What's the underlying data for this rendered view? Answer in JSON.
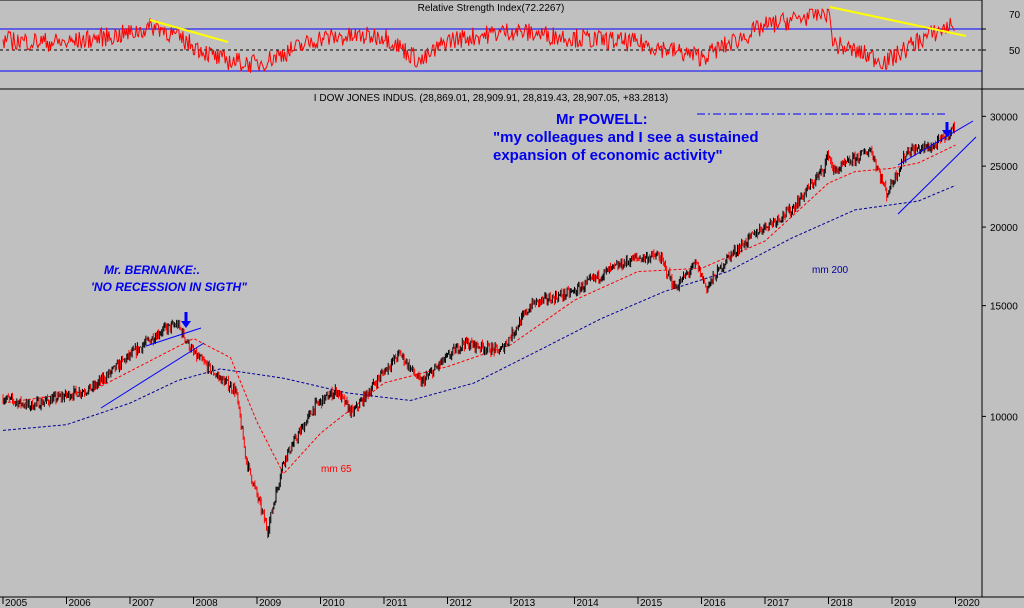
{
  "rsi_panel": {
    "title": "Relative Strength Index(72.2267)",
    "ticks": [
      "70",
      "50"
    ],
    "levels": [
      70,
      50,
      30
    ],
    "ylim": [
      20,
      85
    ],
    "colors": {
      "line": "#ff0000",
      "level": "#0000ff",
      "trend": "#ffff00"
    }
  },
  "main_panel": {
    "title": "I DOW JONES INDUS. (28,869.01, 28,909.91, 28,819.43, 28,907.05, +83.2813)",
    "y_ticks": [
      30000,
      25000,
      20000,
      15000,
      10000
    ],
    "ylim": [
      5200,
      31500
    ],
    "scale": "log",
    "colors": {
      "up": "#000000",
      "down": "#ff0000",
      "mm65": "#ff0000",
      "mm200": "#000099",
      "annotation": "#0000ee"
    }
  },
  "annotations": {
    "bernanke_line1": "Mr. BERNANKE:.",
    "bernanke_line2": "'NO RECESSION IN SIGTH\"",
    "powell_line1": "Mr POWELL:",
    "powell_line2": "\"my colleagues and I see a sustained",
    "powell_line3": "expansion of economic activity\"",
    "mm65_label": "mm 65",
    "mm200_label": "mm 200"
  },
  "x_axis": {
    "labels": [
      "2005",
      "2006",
      "2007",
      "2008",
      "2009",
      "2010",
      "2011",
      "2012",
      "2013",
      "2014",
      "2015",
      "2016",
      "2017",
      "2018",
      "2019",
      "2020"
    ]
  },
  "chart_data": {
    "type": "line",
    "series": [
      {
        "name": "I DOW JONES INDUS.",
        "x": [
          "2005-01",
          "2005-06",
          "2006-01",
          "2006-06",
          "2007-01",
          "2007-07",
          "2007-10",
          "2008-01",
          "2008-06",
          "2008-09",
          "2008-11",
          "2009-03",
          "2009-06",
          "2009-12",
          "2010-04",
          "2010-07",
          "2011-01",
          "2011-04",
          "2011-08",
          "2011-12",
          "2012-04",
          "2012-11",
          "2013-05",
          "2014-01",
          "2014-06",
          "2014-12",
          "2015-05",
          "2015-08",
          "2015-12",
          "2016-02",
          "2016-06",
          "2016-12",
          "2017-06",
          "2017-12",
          "2018-01",
          "2018-02",
          "2018-09",
          "2018-12",
          "2019-04",
          "2019-06",
          "2019-09",
          "2020-01"
        ],
        "values": [
          10700,
          10400,
          10800,
          11100,
          12500,
          13700,
          14000,
          12600,
          11500,
          11000,
          8500,
          6600,
          8500,
          10400,
          11000,
          10100,
          11800,
          12600,
          11300,
          12200,
          13100,
          12700,
          15100,
          15800,
          16800,
          17800,
          18000,
          16000,
          17500,
          16000,
          17900,
          19800,
          21300,
          24700,
          26200,
          24500,
          26600,
          22600,
          26500,
          26600,
          26900,
          28900
        ]
      },
      {
        "name": "mm 65",
        "x": [
          "2005-01",
          "2006-06",
          "2007-06",
          "2008-01",
          "2008-08",
          "2009-01",
          "2009-06",
          "2010-01",
          "2011-01",
          "2012-01",
          "2013-01",
          "2014-01",
          "2015-01",
          "2016-01",
          "2017-01",
          "2018-01",
          "2018-06",
          "2019-01",
          "2019-06",
          "2020-01"
        ],
        "values": [
          10500,
          11000,
          12400,
          13300,
          12400,
          9800,
          8100,
          9400,
          11300,
          12000,
          13000,
          15300,
          17000,
          17200,
          19000,
          23500,
          24500,
          24800,
          25300,
          27000
        ]
      },
      {
        "name": "mm 200",
        "x": [
          "2005-01",
          "2006-01",
          "2007-01",
          "2007-10",
          "2008-06",
          "2009-06",
          "2010-06",
          "2011-06",
          "2012-06",
          "2013-06",
          "2014-06",
          "2015-06",
          "2016-06",
          "2017-06",
          "2018-06",
          "2019-06",
          "2020-01"
        ],
        "values": [
          9500,
          9700,
          10500,
          11400,
          11900,
          11500,
          10900,
          10600,
          11300,
          12700,
          14300,
          15800,
          17000,
          19200,
          21300,
          22000,
          23300
        ]
      },
      {
        "name": "Relative Strength Index",
        "x": [
          "2005-01",
          "2006-01",
          "2007-01",
          "2007-06",
          "2008-06",
          "2009-01",
          "2010-01",
          "2011-01",
          "2011-08",
          "2012-01",
          "2013-01",
          "2014-01",
          "2015-01",
          "2016-01",
          "2017-01",
          "2018-01",
          "2018-02",
          "2018-12",
          "2019-06",
          "2020-01"
        ],
        "values": [
          58,
          56,
          64,
          70,
          42,
          38,
          60,
          62,
          40,
          58,
          66,
          60,
          56,
          44,
          70,
          82,
          55,
          40,
          58,
          72.2267
        ]
      }
    ],
    "ylim": [
      5200,
      31500
    ],
    "grid": false,
    "legend": "none"
  }
}
